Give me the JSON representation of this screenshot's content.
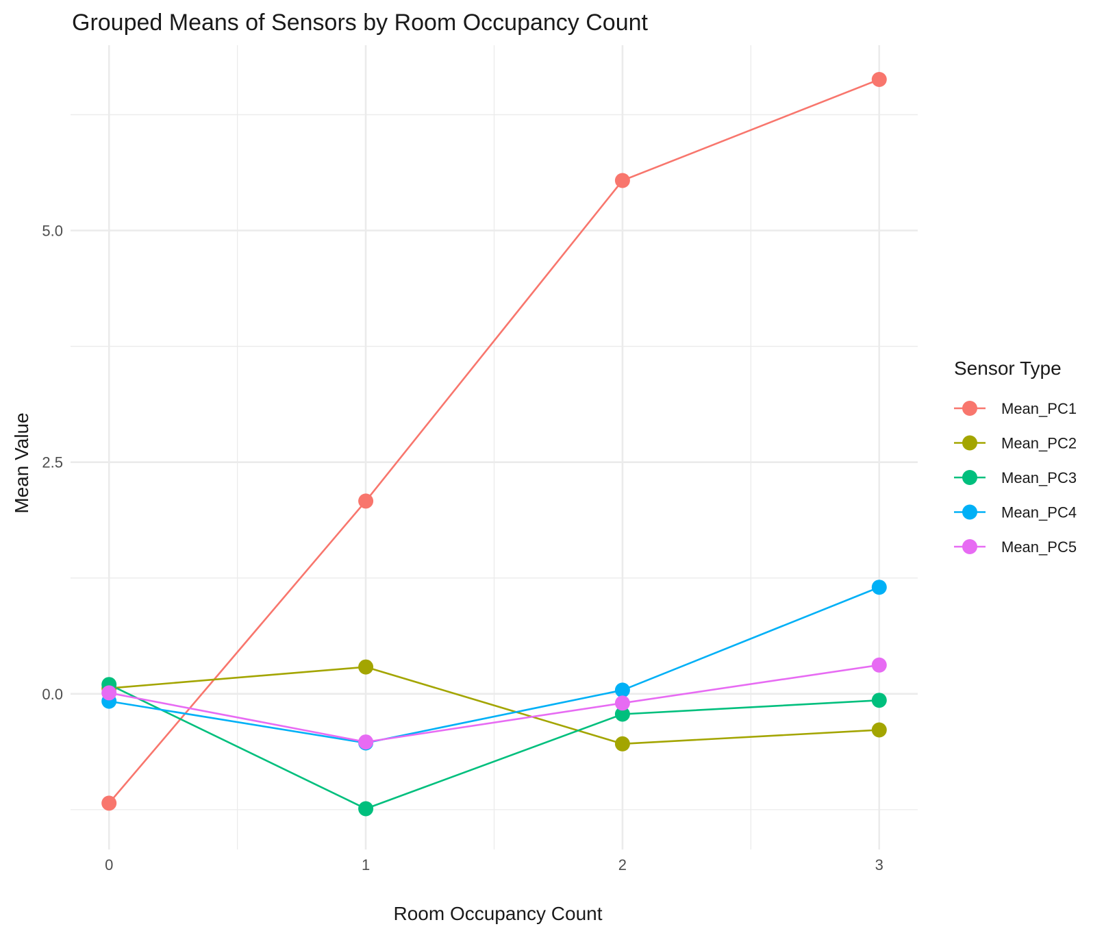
{
  "chart_data": {
    "type": "line",
    "title": "Grouped Means of Sensors by Room Occupancy Count",
    "xlabel": "Room Occupancy Count",
    "ylabel": "Mean Value",
    "x": [
      0,
      1,
      2,
      3
    ],
    "x_ticks": [
      "0",
      "1",
      "2",
      "3"
    ],
    "xlim": [
      -0.15,
      3.15
    ],
    "y_ticks": [
      0.0,
      2.5,
      5.0
    ],
    "y_tick_labels": [
      "0.0",
      "2.5",
      "5.0"
    ],
    "ylim": [
      -1.68,
      7.0
    ],
    "grid": true,
    "legend": {
      "title": "Sensor Type",
      "placement": "right"
    },
    "series": [
      {
        "name": "Mean_PC1",
        "color": "#F8766D",
        "values": [
          -1.18,
          2.08,
          5.54,
          6.63
        ]
      },
      {
        "name": "Mean_PC2",
        "color": "#A3A500",
        "values": [
          0.06,
          0.29,
          -0.54,
          -0.39
        ]
      },
      {
        "name": "Mean_PC3",
        "color": "#00BF7D",
        "values": [
          0.1,
          -1.24,
          -0.22,
          -0.07
        ]
      },
      {
        "name": "Mean_PC4",
        "color": "#00B0F6",
        "values": [
          -0.08,
          -0.53,
          0.04,
          1.15
        ]
      },
      {
        "name": "Mean_PC5",
        "color": "#E76BF3",
        "values": [
          0.01,
          -0.52,
          -0.1,
          0.31
        ]
      }
    ]
  }
}
